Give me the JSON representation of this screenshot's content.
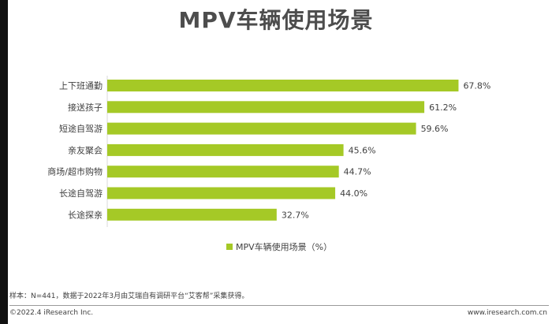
{
  "title": "MPV车辆使用场景",
  "chart_data": {
    "type": "bar",
    "orientation": "horizontal",
    "categories": [
      "上下班通勤",
      "接送孩子",
      "短途自驾游",
      "亲友聚会",
      "商场/超市购物",
      "长途自驾游",
      "长途探亲"
    ],
    "values": [
      67.8,
      61.2,
      59.6,
      45.6,
      44.7,
      44.0,
      32.7
    ],
    "value_labels": [
      "67.8%",
      "61.2%",
      "59.6%",
      "45.6%",
      "44.7%",
      "44.0%",
      "32.7%"
    ],
    "series": [
      {
        "name": "MPV车辆使用场景（%）",
        "values": [
          67.8,
          61.2,
          59.6,
          45.6,
          44.7,
          44.0,
          32.7
        ]
      }
    ],
    "legend_position": "bottom",
    "color": "#a5c926",
    "xlim": [
      0,
      70
    ],
    "grid": false
  },
  "footer": {
    "note": "样本：N=441，数据于2022年3月由艾瑞自有调研平台“艾客帮”采集获得。",
    "copyright": "©2022.4 iResearch Inc.",
    "website": "www.iresearch.com.cn"
  }
}
